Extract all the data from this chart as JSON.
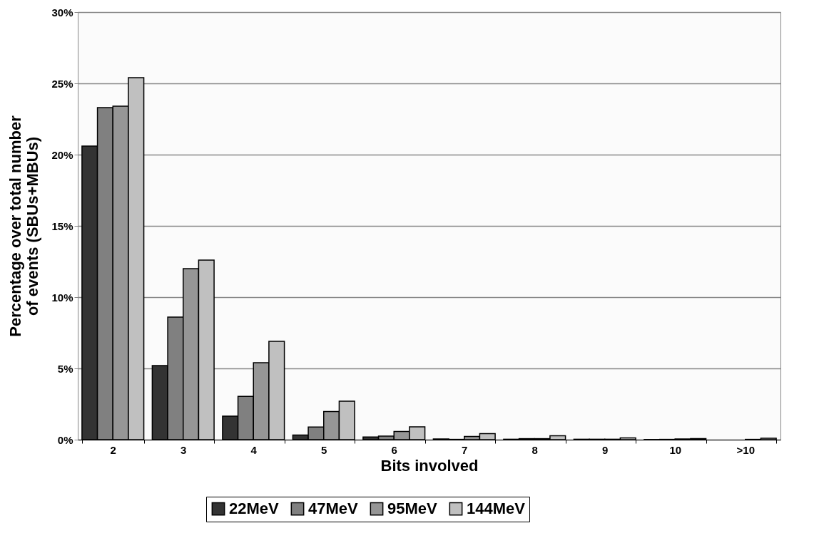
{
  "chart_data": {
    "type": "bar",
    "xlabel": "Bits involved",
    "ylabel": "Percentage over total number of events (SBUs+MBUs)",
    "categories": [
      "2",
      "3",
      "4",
      "5",
      "6",
      "7",
      "8",
      "9",
      "10",
      ">10"
    ],
    "series": [
      {
        "name": "22MeV",
        "color": "#333333",
        "values": [
          20.6,
          5.2,
          1.65,
          0.33,
          0.19,
          0.05,
          0.03,
          0.03,
          0.01,
          null
        ]
      },
      {
        "name": "47MeV",
        "color": "#808080",
        "values": [
          23.3,
          8.6,
          3.04,
          0.89,
          0.25,
          0.02,
          0.07,
          0.03,
          0.02,
          null
        ]
      },
      {
        "name": "95MeV",
        "color": "#969696",
        "values": [
          23.4,
          12.0,
          5.4,
          1.98,
          0.57,
          0.23,
          0.07,
          0.03,
          0.05,
          0.02
        ]
      },
      {
        "name": "144MeV",
        "color": "#c0c0c0",
        "values": [
          25.4,
          12.6,
          6.9,
          2.7,
          0.9,
          0.42,
          0.27,
          0.12,
          0.08,
          0.1
        ]
      }
    ],
    "ylim": [
      0,
      30
    ],
    "yticks": [
      {
        "value": 0,
        "label": "0%"
      },
      {
        "value": 5,
        "label": "5%"
      },
      {
        "value": 10,
        "label": "10%"
      },
      {
        "value": 15,
        "label": "15%"
      },
      {
        "value": 20,
        "label": "20%"
      },
      {
        "value": 25,
        "label": "25%"
      },
      {
        "value": 30,
        "label": "30%"
      }
    ],
    "grid": "y",
    "legend": "bottom"
  }
}
